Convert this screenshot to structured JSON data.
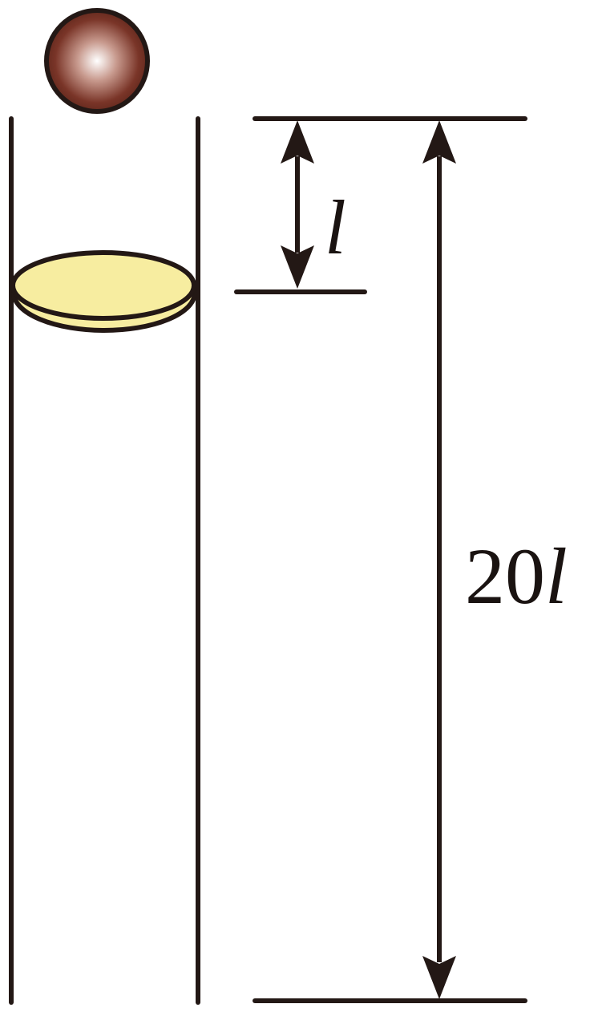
{
  "labels": {
    "small": "l",
    "large_number": "20",
    "large_symbol": "l"
  },
  "colors": {
    "ink": "#231815",
    "disk_fill": "#f7eda0",
    "ball_edge": "#2a1410",
    "ball_dark": "#6b2e22",
    "ball_light": "#ffffff"
  }
}
